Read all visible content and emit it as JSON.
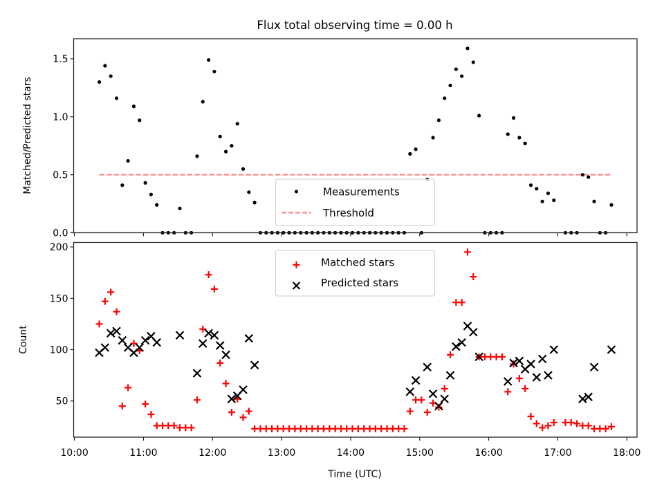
{
  "chart_data": [
    {
      "panel": "top",
      "type": "scatter",
      "title": "Flux total observing time = 0.00 h",
      "xlabel": "",
      "ylabel": "Matched/Predicted stars",
      "xlim": [
        "09:59",
        "18:09"
      ],
      "ylim": [
        0,
        1.673
      ],
      "yticks": [
        0.0,
        0.5,
        1.0,
        1.5
      ],
      "ytick_labels": [
        "0.0",
        "0.5",
        "1.0",
        "1.5"
      ],
      "xticks": [
        "10:00",
        "11:00",
        "12:00",
        "13:00",
        "14:00",
        "15:00",
        "16:00",
        "17:00",
        "18:00"
      ],
      "show_xtick_labels": false,
      "grid": false,
      "legend": {
        "placement": "lower-center",
        "entries": [
          {
            "label": "Measurements",
            "marker": "dot",
            "color": "#000000"
          },
          {
            "label": "Threshold",
            "marker": "dashed-line",
            "color": "#ff7f7f"
          }
        ]
      },
      "series": [
        {
          "name": "Measurements",
          "source": "ratio",
          "color": "#000000"
        },
        {
          "name": "Threshold",
          "value": 0.5,
          "color": "#ff7f7f",
          "style": "dashed"
        }
      ]
    },
    {
      "panel": "bottom",
      "type": "scatter",
      "title": "",
      "xlabel": "Time (UTC)",
      "ylabel": "Count",
      "xlim": [
        "09:59",
        "18:09"
      ],
      "ylim": [
        14.8,
        204.4
      ],
      "yticks": [
        50,
        100,
        150,
        200
      ],
      "ytick_labels": [
        "50",
        "100",
        "150",
        "200"
      ],
      "xticks": [
        "10:00",
        "11:00",
        "12:00",
        "13:00",
        "14:00",
        "15:00",
        "16:00",
        "17:00",
        "18:00"
      ],
      "show_xtick_labels": true,
      "grid": false,
      "legend": {
        "placement": "upper-center",
        "entries": [
          {
            "label": "Matched stars",
            "marker": "plus",
            "color": "#ff0000"
          },
          {
            "label": "Predicted stars",
            "marker": "x",
            "color": "#000000"
          }
        ]
      },
      "series": [
        {
          "name": "Matched stars",
          "source": "matched",
          "color": "#ff0000"
        },
        {
          "name": "Predicted stars",
          "source": "predicted",
          "color": "#000000"
        }
      ]
    }
  ],
  "observations": {
    "time": [
      "10:22",
      "10:27",
      "10:32",
      "10:37",
      "10:42",
      "10:47",
      "10:52",
      "10:57",
      "11:02",
      "11:07",
      "11:12",
      "11:17",
      "11:22",
      "11:27",
      "11:32",
      "11:37",
      "11:42",
      "11:47",
      "11:52",
      "11:57",
      "12:02",
      "12:07",
      "12:12",
      "12:17",
      "12:22",
      "12:27",
      "12:32",
      "12:37",
      "12:42",
      "12:47",
      "12:52",
      "12:57",
      "13:02",
      "13:07",
      "13:12",
      "13:17",
      "13:22",
      "13:27",
      "13:32",
      "13:37",
      "13:42",
      "13:47",
      "13:52",
      "13:57",
      "14:02",
      "14:07",
      "14:12",
      "14:17",
      "14:22",
      "14:27",
      "14:32",
      "14:37",
      "14:42",
      "14:47",
      "14:52",
      "14:57",
      "15:02",
      "15:07",
      "15:12",
      "15:17",
      "15:22",
      "15:27",
      "15:32",
      "15:37",
      "15:42",
      "15:47",
      "15:52",
      "15:57",
      "16:02",
      "16:07",
      "16:12",
      "16:17",
      "16:22",
      "16:27",
      "16:32",
      "16:37",
      "16:42",
      "16:47",
      "16:52",
      "16:57",
      "17:07",
      "17:12",
      "17:17",
      "17:22",
      "17:27",
      "17:32",
      "17:37",
      "17:42",
      "17:47"
    ],
    "matched": [
      125,
      147,
      156,
      137,
      45,
      63,
      106,
      99,
      47,
      37,
      26,
      26,
      26,
      26,
      24,
      24,
      24,
      51,
      120,
      173,
      159,
      87,
      67,
      39,
      52,
      34,
      40,
      23,
      23,
      23,
      23,
      23,
      23,
      23,
      23,
      23,
      23,
      23,
      23,
      23,
      23,
      23,
      23,
      23,
      23,
      23,
      23,
      23,
      23,
      23,
      23,
      23,
      23,
      23,
      40,
      51,
      51,
      39,
      48,
      44,
      62,
      95,
      146,
      146,
      195,
      171,
      93,
      93,
      93,
      93,
      93,
      59,
      86,
      72,
      62,
      35,
      28,
      24,
      26,
      29,
      29,
      29,
      28,
      26,
      26,
      23,
      23,
      23,
      25
    ],
    "predicted": [
      97,
      102,
      116,
      118,
      109,
      102,
      97,
      102,
      109,
      113,
      107,
      null,
      null,
      null,
      114,
      null,
      null,
      77,
      106,
      116,
      114,
      104,
      95,
      52,
      55,
      61,
      111,
      85,
      null,
      null,
      null,
      null,
      null,
      null,
      null,
      null,
      null,
      null,
      null,
      null,
      null,
      null,
      null,
      null,
      null,
      null,
      null,
      null,
      null,
      null,
      null,
      null,
      null,
      null,
      59,
      70,
      null,
      83,
      57,
      45,
      52,
      75,
      103,
      107,
      123,
      117,
      93,
      null,
      null,
      null,
      null,
      69,
      87,
      89,
      81,
      86,
      73,
      91,
      75,
      100,
      null,
      null,
      null,
      52,
      54,
      83,
      null,
      null,
      100
    ],
    "ratio": [
      1.3,
      1.44,
      1.35,
      1.16,
      0.41,
      0.62,
      1.09,
      0.97,
      0.43,
      0.33,
      0.24,
      0,
      0,
      0,
      0.21,
      0,
      0,
      0.66,
      1.13,
      1.49,
      1.39,
      0.83,
      0.7,
      0.75,
      0.94,
      0.55,
      0.35,
      0.26,
      0,
      0,
      0,
      0,
      0,
      0,
      0,
      0,
      0,
      0,
      0,
      0,
      0,
      0,
      0,
      0,
      0,
      0,
      0,
      0,
      0,
      0,
      0,
      0,
      0,
      0,
      0.68,
      0.72,
      0,
      0.46,
      0.82,
      0.97,
      1.16,
      1.27,
      1.41,
      1.35,
      1.59,
      1.47,
      1.01,
      0,
      0,
      0,
      0,
      0.85,
      0.99,
      0.82,
      0.77,
      0.41,
      0.38,
      0.27,
      0.34,
      0.28,
      0,
      0,
      0,
      0.5,
      0.48,
      0.27,
      0,
      0,
      0.24
    ]
  }
}
